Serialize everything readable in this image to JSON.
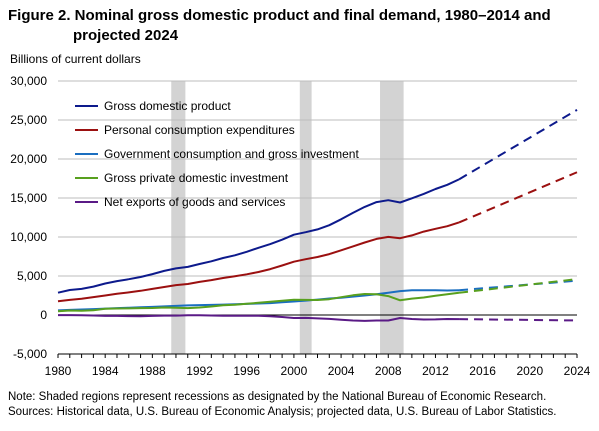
{
  "title_line1": "Figure 2. Nominal gross domestic product and final demand, 1980–2014 and",
  "title_line2": "projected 2024",
  "note_line1": "Note: Shaded regions represent recessions as designated by the National Bureau of Economic Research.",
  "note_line2": "Sources: Historical data, U.S. Bureau of Economic Analysis; projected data, U.S. Bureau of Labor Statistics.",
  "chart_data": {
    "type": "line",
    "ylabel": "Billions of current dollars",
    "xlim": [
      1980,
      2024
    ],
    "ylim": [
      -5000,
      30000
    ],
    "x_ticks": [
      1980,
      1984,
      1988,
      1992,
      1996,
      2000,
      2004,
      2008,
      2012,
      2016,
      2020,
      2024
    ],
    "y_ticks": [
      -5000,
      0,
      5000,
      10000,
      15000,
      20000,
      25000,
      30000
    ],
    "y_tick_labels": [
      "-5,000",
      "0",
      "5,000",
      "10,000",
      "15,000",
      "20,000",
      "25,000",
      "30,000"
    ],
    "grid": "horizontal",
    "legend": "top-left",
    "recessions": [
      [
        1989.6,
        1990.8
      ],
      [
        2000.5,
        2001.5
      ],
      [
        2007.3,
        2009.3
      ]
    ],
    "recession_color": "#d3d3d3",
    "historical_end": 2014,
    "projection_end": 2024,
    "series": [
      {
        "name": "Gross domestic product",
        "color": "#0d1a8c",
        "historical": [
          2860,
          3210,
          3350,
          3640,
          4040,
          4350,
          4590,
          4870,
          5250,
          5660,
          5980,
          6170,
          6540,
          6880,
          7310,
          7660,
          8100,
          8610,
          9090,
          9660,
          10290,
          10620,
          10980,
          11510,
          12270,
          13090,
          13860,
          14480,
          14720,
          14420,
          14960,
          15520,
          16160,
          16690,
          17390
        ],
        "projected_2024": 26300
      },
      {
        "name": "Personal consumption expenditures",
        "color": "#9b1010",
        "historical": [
          1760,
          1940,
          2080,
          2290,
          2500,
          2720,
          2900,
          3100,
          3350,
          3590,
          3830,
          3980,
          4240,
          4480,
          4740,
          4980,
          5220,
          5510,
          5880,
          6340,
          6830,
          7150,
          7440,
          7810,
          8290,
          8800,
          9300,
          9750,
          10010,
          9850,
          10200,
          10690,
          11050,
          11390,
          11870
        ],
        "projected_2024": 18300
      },
      {
        "name": "Government consumption and gross investment",
        "color": "#1a6ec0",
        "historical": [
          590,
          650,
          710,
          760,
          820,
          880,
          940,
          990,
          1040,
          1100,
          1170,
          1230,
          1270,
          1300,
          1330,
          1370,
          1420,
          1470,
          1530,
          1630,
          1730,
          1850,
          1980,
          2110,
          2220,
          2360,
          2500,
          2660,
          2860,
          3070,
          3170,
          3170,
          3170,
          3140,
          3180
        ],
        "projected_2024": 4400
      },
      {
        "name": "Gross private domestic investment",
        "color": "#58a01e",
        "historical": [
          480,
          580,
          540,
          600,
          800,
          830,
          850,
          880,
          900,
          960,
          930,
          880,
          960,
          1090,
          1260,
          1320,
          1430,
          1560,
          1690,
          1820,
          1960,
          1930,
          1920,
          2030,
          2280,
          2530,
          2690,
          2650,
          2420,
          1880,
          2100,
          2240,
          2480,
          2650,
          2850
        ],
        "projected_2024": 4600
      },
      {
        "name": "Net exports of goods and services",
        "color": "#5a1a86",
        "historical": [
          -10,
          -10,
          -20,
          -60,
          -110,
          -120,
          -140,
          -150,
          -110,
          -80,
          -80,
          -20,
          -30,
          -70,
          -100,
          -90,
          -90,
          -90,
          -160,
          -260,
          -380,
          -370,
          -430,
          -500,
          -620,
          -710,
          -760,
          -710,
          -710,
          -390,
          -510,
          -580,
          -570,
          -510,
          -530
        ],
        "projected_2024": -700
      }
    ]
  }
}
